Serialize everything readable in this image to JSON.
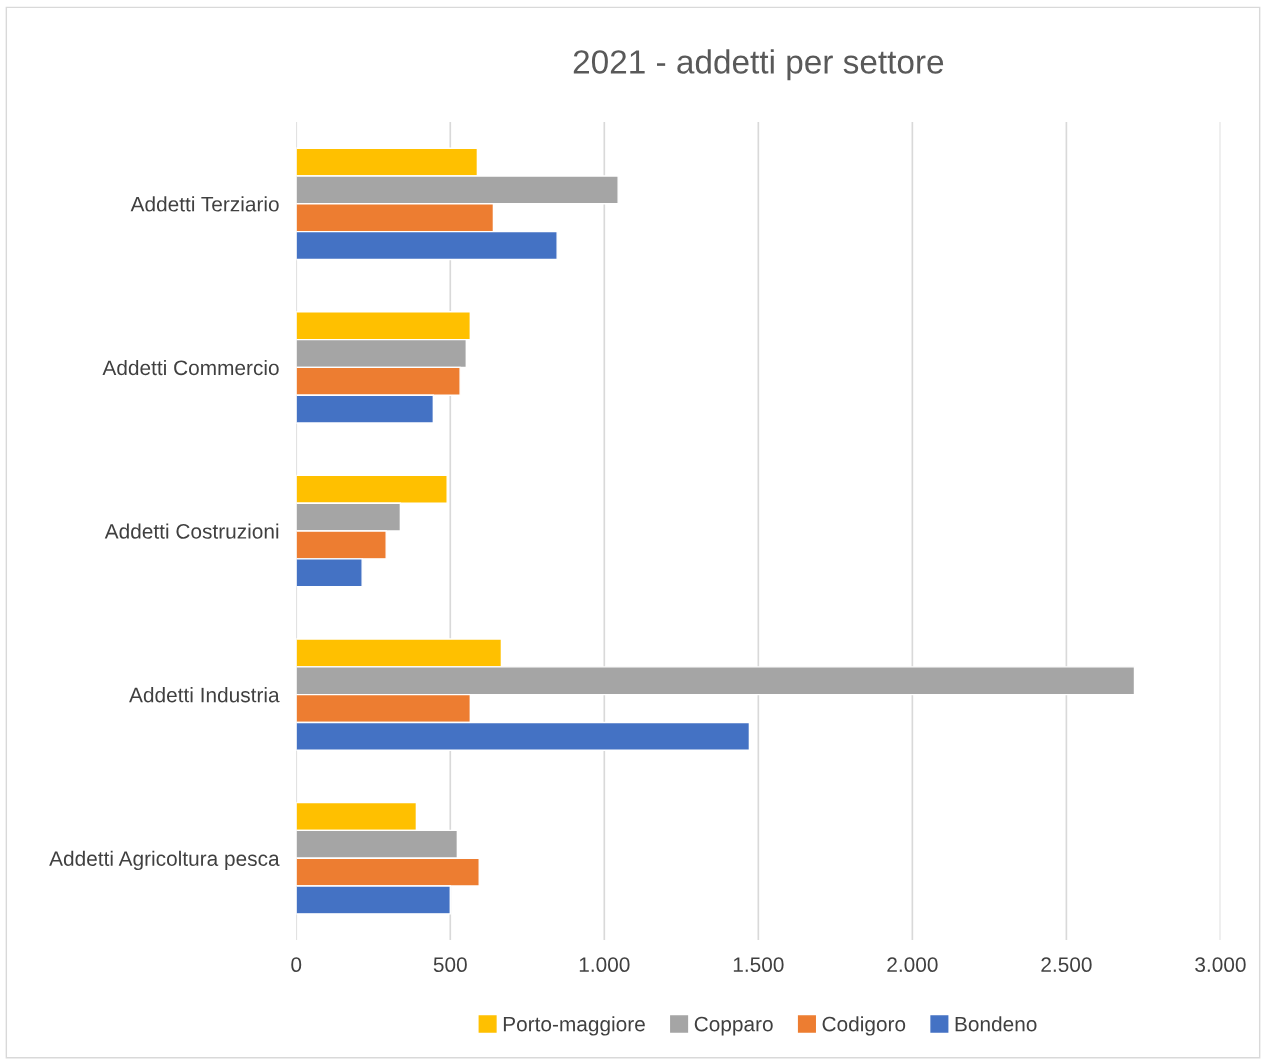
{
  "chart_data": {
    "type": "bar",
    "orientation": "horizontal",
    "title": "2021 - addetti per settore",
    "categories": [
      "Addetti Terziario",
      "Addetti Commercio",
      "Addetti Costruzioni",
      "Addetti Industria",
      "Addetti Agricoltura pesca"
    ],
    "series": [
      {
        "name": "Porto-maggiore",
        "color": "#ffc000",
        "values": [
          588,
          565,
          490,
          666,
          390
        ]
      },
      {
        "name": "Copparo",
        "color": "#a5a5a5",
        "values": [
          1045,
          552,
          338,
          2721,
          523
        ]
      },
      {
        "name": "Codigoro",
        "color": "#ed7d31",
        "values": [
          640,
          532,
          292,
          565,
          594
        ]
      },
      {
        "name": "Bondeno",
        "color": "#4472c4",
        "values": [
          847,
          445,
          214,
          1471,
          500
        ]
      }
    ],
    "xlim": [
      0,
      3000
    ],
    "xticks": [
      0,
      500,
      {
        "value": 1000,
        "label": "1.000"
      },
      {
        "value": 1500,
        "label": "1.500"
      },
      {
        "value": 2000,
        "label": "2.000"
      },
      {
        "value": 2500,
        "label": "2.500"
      },
      {
        "value": 3000,
        "label": "3.000"
      }
    ],
    "grid": "x",
    "legend": "bottom"
  }
}
